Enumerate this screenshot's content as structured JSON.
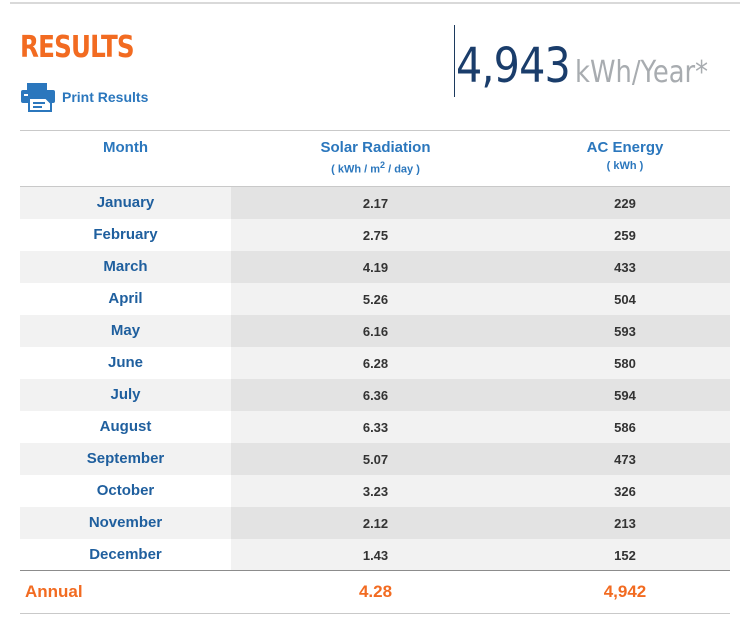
{
  "header": {
    "title": "RESULTS",
    "print_label": "Print Results",
    "summary_value": "4,943",
    "summary_unit": "kWh/Year*"
  },
  "table": {
    "columns": [
      {
        "label": "Month",
        "sub_pre": "",
        "sub_sup": "",
        "sub_post": ""
      },
      {
        "label": "Solar Radiation",
        "sub_pre": "( kWh / m",
        "sub_sup": "2",
        "sub_post": " / day )"
      },
      {
        "label": "AC Energy",
        "sub_pre": "( kWh )",
        "sub_sup": "",
        "sub_post": ""
      }
    ],
    "rows": [
      {
        "month": "January",
        "solar": "2.17",
        "ac": "229"
      },
      {
        "month": "February",
        "solar": "2.75",
        "ac": "259"
      },
      {
        "month": "March",
        "solar": "4.19",
        "ac": "433"
      },
      {
        "month": "April",
        "solar": "5.26",
        "ac": "504"
      },
      {
        "month": "May",
        "solar": "6.16",
        "ac": "593"
      },
      {
        "month": "June",
        "solar": "6.28",
        "ac": "580"
      },
      {
        "month": "July",
        "solar": "6.36",
        "ac": "594"
      },
      {
        "month": "August",
        "solar": "6.33",
        "ac": "586"
      },
      {
        "month": "September",
        "solar": "5.07",
        "ac": "473"
      },
      {
        "month": "October",
        "solar": "3.23",
        "ac": "326"
      },
      {
        "month": "November",
        "solar": "2.12",
        "ac": "213"
      },
      {
        "month": "December",
        "solar": "1.43",
        "ac": "152"
      }
    ],
    "annual": {
      "label": "Annual",
      "solar": "4.28",
      "ac": "4,942"
    }
  },
  "colors": {
    "accent_orange": "#f26b21",
    "link_blue": "#2b77bd",
    "summary_navy": "#1a3d6b",
    "unit_gray": "#a8acb0"
  },
  "icons": {
    "print": "printer-icon"
  }
}
